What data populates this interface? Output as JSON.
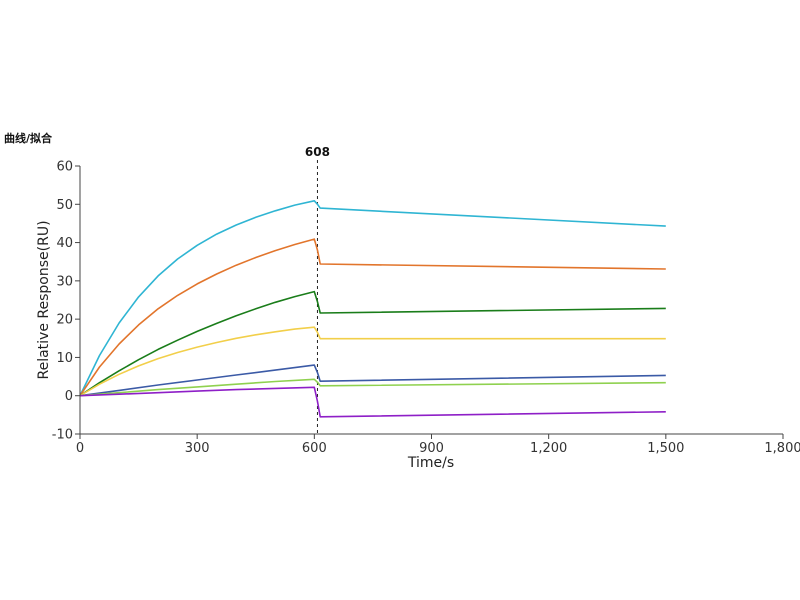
{
  "page_title": "曲线/拟合",
  "chart_data": {
    "type": "line",
    "title": "",
    "xlabel": "Time/s",
    "ylabel": "Relative Response(RU)",
    "xlim": [
      0,
      1800
    ],
    "ylim": [
      -10,
      60
    ],
    "x_ticks": [
      0,
      300,
      600,
      900,
      1200,
      1500,
      1800
    ],
    "x_tick_labels": [
      "0",
      "300",
      "600",
      "900",
      "1,200",
      "1,500",
      "1,800"
    ],
    "y_ticks": [
      -10,
      0,
      10,
      20,
      30,
      40,
      50,
      60
    ],
    "y_tick_labels": [
      "-10",
      "0",
      "10",
      "20",
      "30",
      "40",
      "50",
      "60"
    ],
    "marker": {
      "x": 608,
      "label": "608"
    },
    "grid": false,
    "legend": "none",
    "series": [
      {
        "color": "#2fb5d3",
        "x": [
          0,
          50,
          100,
          150,
          200,
          250,
          300,
          350,
          400,
          450,
          500,
          550,
          600,
          608,
          615,
          1500
        ],
        "y": [
          0,
          10.5,
          19.0,
          25.8,
          31.3,
          35.7,
          39.3,
          42.2,
          44.6,
          46.6,
          48.3,
          49.8,
          50.9,
          50.0,
          49.0,
          44.3
        ]
      },
      {
        "color": "#e2752c",
        "x": [
          0,
          50,
          100,
          150,
          200,
          250,
          300,
          350,
          400,
          450,
          500,
          550,
          600,
          608,
          615,
          1500
        ],
        "y": [
          0,
          7.5,
          13.5,
          18.5,
          22.7,
          26.2,
          29.2,
          31.8,
          34.1,
          36.1,
          37.9,
          39.5,
          40.9,
          38.0,
          34.4,
          33.1
        ]
      },
      {
        "color": "#1a7d1a",
        "x": [
          0,
          50,
          100,
          150,
          200,
          250,
          300,
          350,
          400,
          450,
          500,
          550,
          600,
          608,
          615,
          1500
        ],
        "y": [
          0,
          3.4,
          6.5,
          9.4,
          12.1,
          14.5,
          16.8,
          18.9,
          20.9,
          22.7,
          24.4,
          25.9,
          27.2,
          24.5,
          21.6,
          22.8
        ]
      },
      {
        "color": "#f2cf4a",
        "x": [
          0,
          50,
          100,
          150,
          200,
          250,
          300,
          350,
          400,
          450,
          500,
          550,
          600,
          608,
          615,
          1500
        ],
        "y": [
          0,
          3.0,
          5.6,
          7.8,
          9.7,
          11.3,
          12.7,
          13.9,
          15.0,
          15.9,
          16.7,
          17.4,
          17.9,
          16.5,
          14.9,
          14.9
        ]
      },
      {
        "color": "#3b5aa6",
        "x": [
          0,
          100,
          200,
          300,
          400,
          500,
          600,
          608,
          615,
          1500
        ],
        "y": [
          0,
          1.4,
          2.8,
          4.1,
          5.4,
          6.7,
          8.0,
          6.0,
          3.8,
          5.3
        ]
      },
      {
        "color": "#8fd14f",
        "x": [
          0,
          100,
          200,
          300,
          400,
          500,
          600,
          608,
          615,
          1500
        ],
        "y": [
          0,
          0.8,
          1.6,
          2.3,
          3.0,
          3.7,
          4.3,
          3.5,
          2.6,
          3.4
        ]
      },
      {
        "color": "#8e1fc7",
        "x": [
          0,
          100,
          200,
          300,
          400,
          500,
          600,
          608,
          615,
          1500
        ],
        "y": [
          0,
          0.4,
          0.8,
          1.2,
          1.6,
          1.9,
          2.2,
          -1.5,
          -5.5,
          -4.2
        ]
      }
    ]
  }
}
